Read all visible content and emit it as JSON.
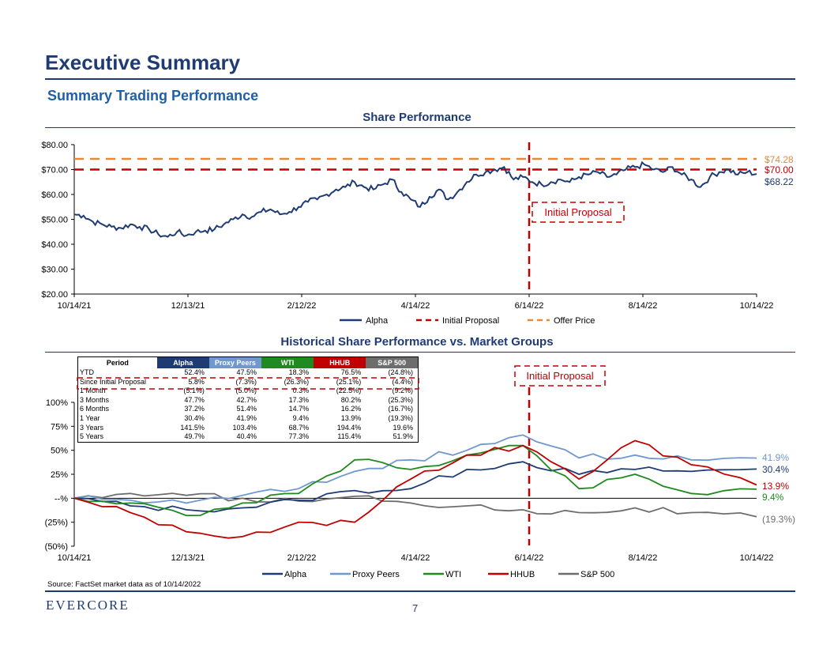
{
  "header": {
    "title": "Executive Summary",
    "subtitle": "Summary Trading Performance"
  },
  "colors": {
    "navy": "#1f3b73",
    "alpha": "#1f3b73",
    "proxy_peers": "#6f98cf",
    "wti": "#1f8a1f",
    "hhub": "#c00000",
    "sp500": "#6d6d6d",
    "initial_proposal": "#c00000",
    "offer_price": "#e8893a"
  },
  "chart_data": [
    {
      "type": "line",
      "title": "Share Performance",
      "ylim": [
        20,
        80
      ],
      "yticks": [
        "$80.00",
        "$70.00",
        "$60.00",
        "$50.00",
        "$40.00",
        "$30.00",
        "$20.00"
      ],
      "xticks": [
        "10/14/21",
        "12/13/21",
        "2/12/22",
        "4/14/22",
        "6/14/22",
        "8/14/22",
        "10/14/22"
      ],
      "legend": [
        "Alpha",
        "Initial Proposal",
        "Offer Price"
      ],
      "legend_position": "bottom",
      "reference_lines": {
        "initial_proposal": 70.0,
        "offer_price": 74.28,
        "initial_proposal_date": "6/14/22"
      },
      "end_labels": [
        "$74.28",
        "$70.00",
        "$68.22"
      ],
      "annotation": "Initial Proposal",
      "series": [
        {
          "name": "Alpha",
          "x_days": [
            0,
            5,
            10,
            15,
            20,
            25,
            30,
            35,
            40,
            45,
            50,
            55,
            60,
            65,
            70,
            75,
            80,
            85,
            90,
            95,
            100,
            105,
            110,
            115,
            120,
            125,
            130,
            135,
            140,
            145,
            150,
            155,
            160,
            165,
            170,
            175,
            180,
            185,
            190,
            195,
            200,
            205,
            210,
            215,
            220,
            225,
            230,
            235,
            240,
            245,
            250,
            255,
            260,
            265,
            270,
            275,
            280,
            285,
            290,
            295,
            300,
            305,
            310,
            315,
            320,
            325,
            330,
            335,
            340,
            345,
            350,
            355,
            360,
            365
          ],
          "values": [
            52,
            51.5,
            49,
            48,
            47,
            46.5,
            48,
            47,
            46,
            44,
            43,
            45,
            43.5,
            45,
            45.5,
            46,
            48,
            50,
            52,
            51,
            53,
            54,
            52,
            53,
            55,
            57,
            58,
            60,
            62,
            63,
            65,
            63,
            62,
            64,
            66,
            61,
            58,
            55,
            59,
            62,
            58,
            61,
            65,
            68,
            69,
            70,
            71,
            66,
            67,
            65,
            64,
            65,
            66,
            65,
            67,
            68,
            69,
            67,
            68,
            70,
            71,
            72,
            70,
            69,
            71,
            68,
            66,
            63,
            67,
            69,
            70,
            68,
            69,
            68.22
          ]
        }
      ]
    },
    {
      "type": "line",
      "title": "Historical Share Performance vs. Market Groups",
      "ylim": [
        -50,
        100
      ],
      "yticks": [
        "100%",
        "75%",
        "50%",
        "25%",
        "--%",
        "(25%)",
        "(50%)"
      ],
      "xticks": [
        "10/14/21",
        "12/13/21",
        "2/12/22",
        "4/14/22",
        "6/14/22",
        "8/14/22",
        "10/14/22"
      ],
      "legend": [
        "Alpha",
        "Proxy Peers",
        "WTI",
        "HHUB",
        "S&P 500"
      ],
      "legend_position": "bottom",
      "annotation": "Initial Proposal",
      "end_labels": [
        "41.9%",
        "30.4%",
        "13.9%",
        "9.4%",
        "(19.3%)"
      ],
      "series": [
        {
          "name": "Alpha",
          "x_days": [
            0,
            30,
            60,
            90,
            120,
            150,
            180,
            210,
            240,
            270,
            300,
            330,
            365
          ],
          "values": [
            0,
            -8,
            -12,
            -10,
            -2,
            8,
            10,
            30,
            38,
            25,
            30,
            28,
            30.4
          ]
        },
        {
          "name": "Proxy Peers",
          "x_days": [
            0,
            30,
            60,
            90,
            120,
            150,
            180,
            210,
            240,
            270,
            300,
            330,
            365
          ],
          "values": [
            0,
            -2,
            -5,
            3,
            10,
            28,
            40,
            50,
            66,
            42,
            45,
            40,
            41.9
          ]
        },
        {
          "name": "WTI",
          "x_days": [
            0,
            30,
            60,
            90,
            120,
            150,
            180,
            210,
            240,
            270,
            300,
            330,
            365
          ],
          "values": [
            0,
            -5,
            -18,
            -5,
            5,
            40,
            30,
            45,
            55,
            10,
            25,
            5,
            9.4
          ]
        },
        {
          "name": "HHUB",
          "x_days": [
            0,
            30,
            60,
            90,
            120,
            150,
            180,
            210,
            240,
            270,
            300,
            330,
            365
          ],
          "values": [
            0,
            -15,
            -35,
            -40,
            -25,
            -25,
            20,
            45,
            55,
            20,
            60,
            35,
            13.9
          ]
        },
        {
          "name": "S&P 500",
          "x_days": [
            0,
            30,
            60,
            90,
            120,
            150,
            180,
            210,
            240,
            270,
            300,
            330,
            365
          ],
          "values": [
            0,
            5,
            3,
            0,
            -3,
            2,
            -5,
            -8,
            -12,
            -15,
            -10,
            -15,
            -19.3
          ]
        }
      ]
    }
  ],
  "table": {
    "headers": [
      "Period",
      "Alpha",
      "Proxy Peers",
      "WTI",
      "HHUB",
      "S&P 500"
    ],
    "rows": [
      [
        "YTD",
        "52.4%",
        "47.5%",
        "18.3%",
        "76.5%",
        "(24.8%)"
      ],
      [
        "Since Initial Proposal",
        "5.8%",
        "(7.3%)",
        "(26.3%)",
        "(25.1%)",
        "(4.4%)"
      ],
      [
        "1 Month",
        "(5.1%)",
        "(5.0%)",
        "0.3%",
        "(22.5%)",
        "(9.2%)"
      ],
      [
        "3 Months",
        "47.7%",
        "42.7%",
        "17.3%",
        "80.2%",
        "(25.3%)"
      ],
      [
        "6 Months",
        "37.2%",
        "51.4%",
        "14.7%",
        "16.2%",
        "(16.7%)"
      ],
      [
        "1 Year",
        "30.4%",
        "41.9%",
        "9.4%",
        "13.9%",
        "(19.3%)"
      ],
      [
        "3 Years",
        "141.5%",
        "103.4%",
        "68.7%",
        "194.4%",
        "19.6%"
      ],
      [
        "5 Years",
        "49.7%",
        "40.4%",
        "77.3%",
        "115.4%",
        "51.9%"
      ]
    ]
  },
  "footer": {
    "source": "Source: FactSet market data as of 10/14/2022",
    "logo": "EVERCORE",
    "page": "7"
  }
}
